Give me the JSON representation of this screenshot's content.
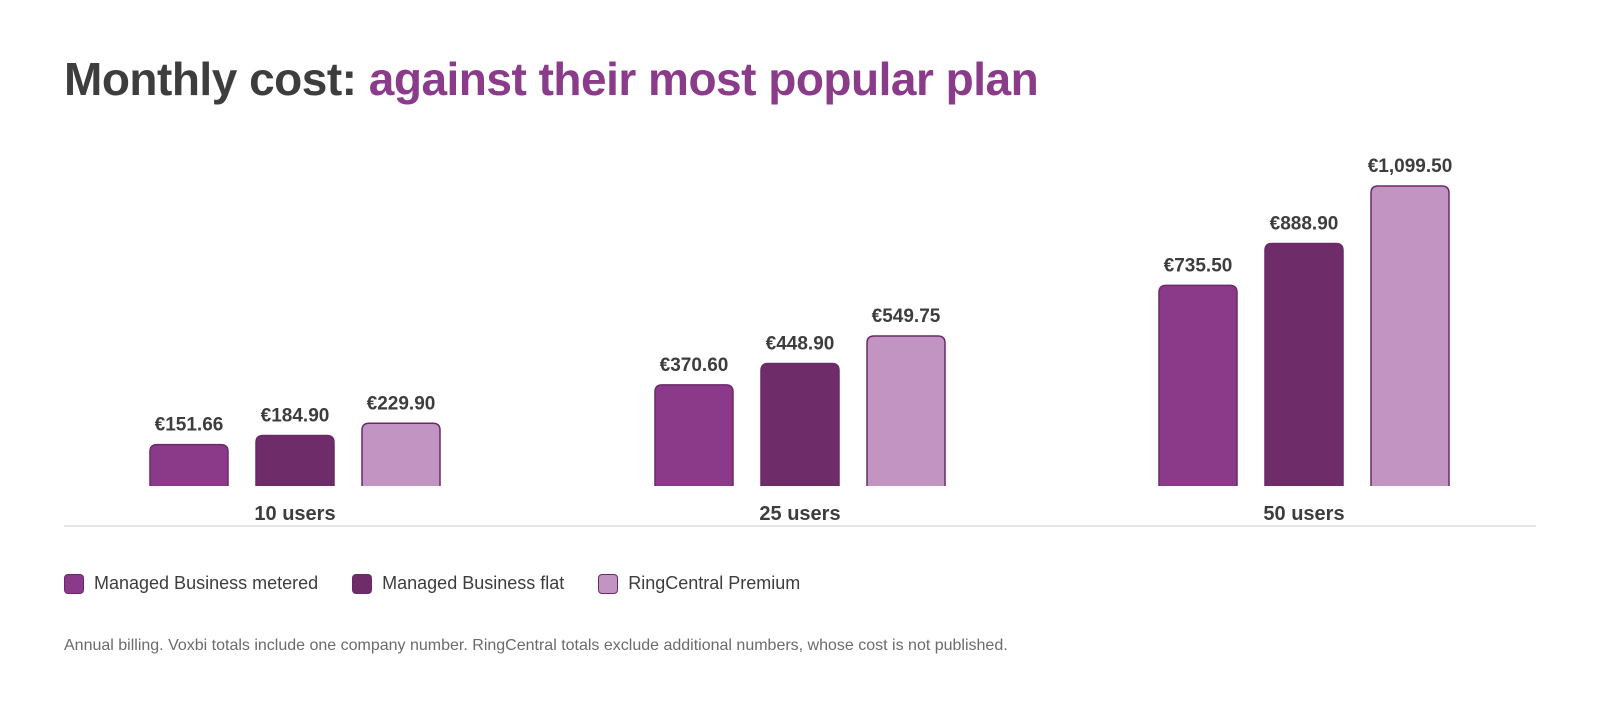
{
  "header": {
    "title_prefix": "Monthly cost:",
    "title_accent": "against their most popular plan"
  },
  "colors": {
    "title_text": "#3d3d3d",
    "accent": "#8a3b8a",
    "series": [
      "#8b3a8a",
      "#6e2c68",
      "#c194c2"
    ],
    "bar_border": "#6a2a67",
    "baseline": "#e6e6e6"
  },
  "chart_data": {
    "type": "bar",
    "title": "Monthly cost: against their most popular plan",
    "categories": [
      "10 users",
      "25 users",
      "50 users"
    ],
    "series": [
      {
        "name": "Managed Business metered",
        "values": [
          151.66,
          370.6,
          735.5
        ],
        "labels": [
          "€151.66",
          "€370.60",
          "€735.50"
        ]
      },
      {
        "name": "Managed Business flat",
        "values": [
          184.9,
          448.9,
          888.9
        ],
        "labels": [
          "€184.90",
          "€448.90",
          "€888.90"
        ]
      },
      {
        "name": "RingCentral Premium",
        "values": [
          229.9,
          549.75,
          1099.5
        ],
        "labels": [
          "€229.90",
          "€549.75",
          "€1,099.50"
        ]
      }
    ],
    "ylim": [
      0,
      1099.5
    ],
    "grid": false,
    "legend_position": "bottom-left"
  },
  "footnote": "Annual billing. Voxbi totals include one company number. RingCentral totals exclude additional numbers, whose cost is not published."
}
